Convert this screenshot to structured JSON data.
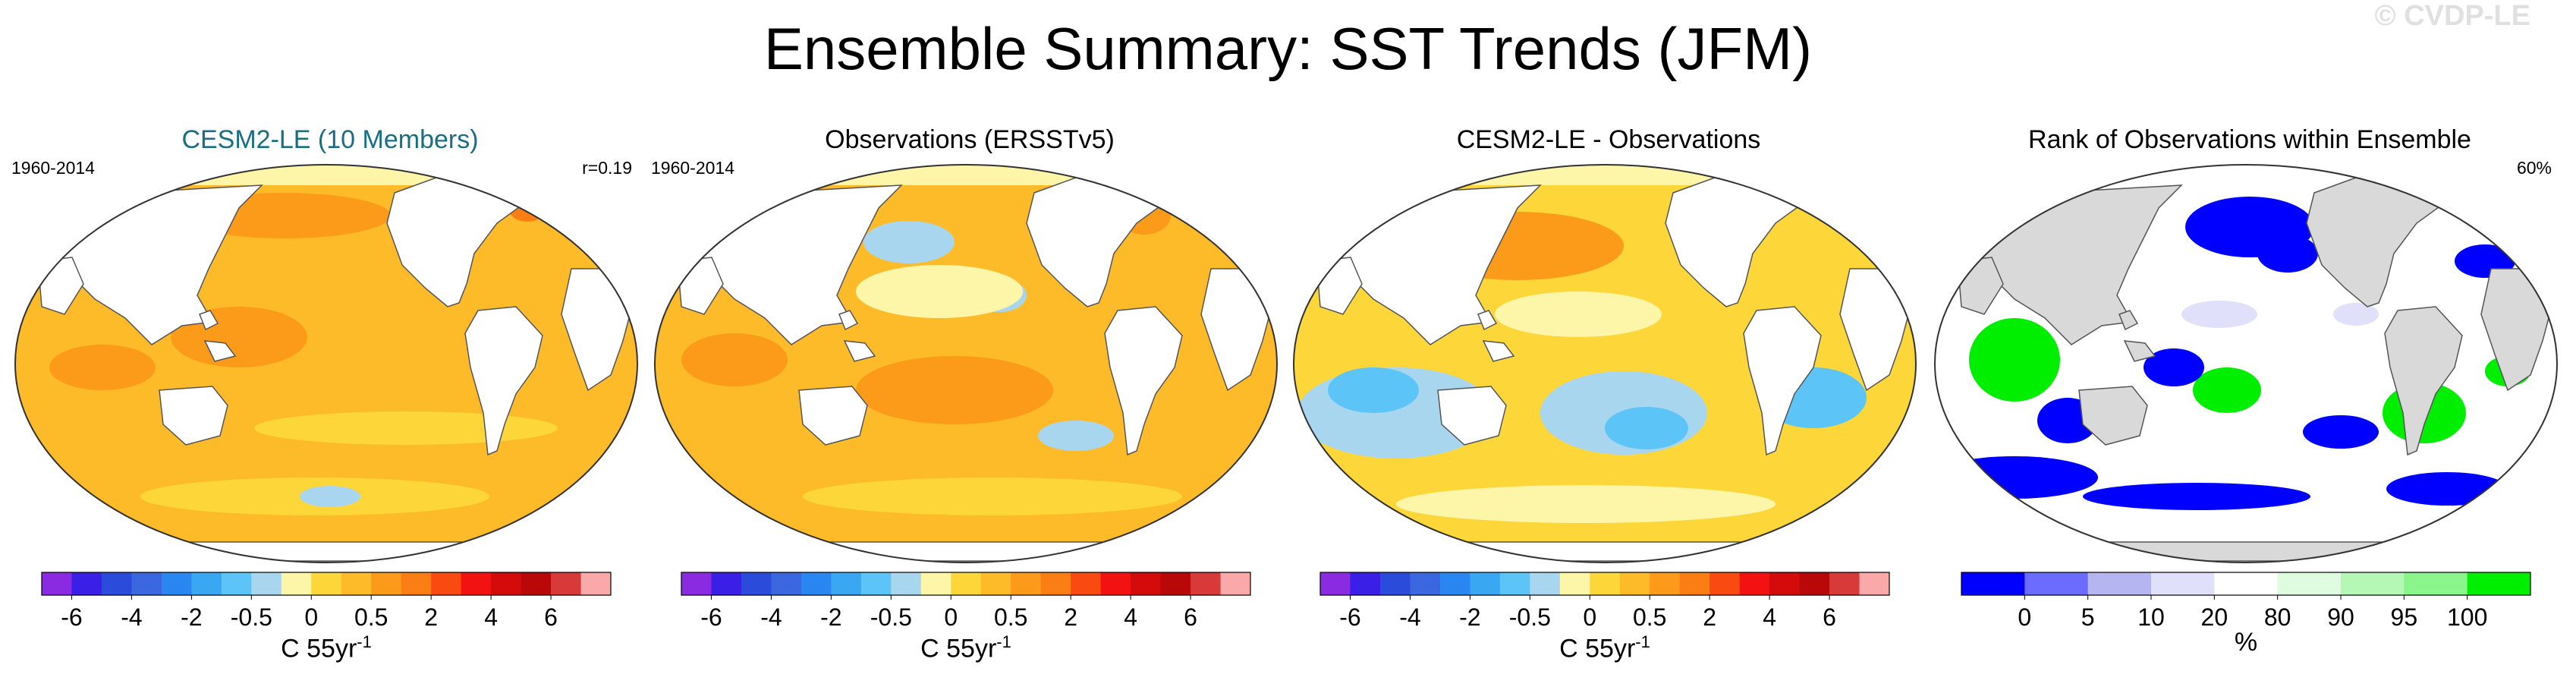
{
  "title": "Ensemble Summary: SST Trends (JFM)",
  "watermark": "© CVDP-LE",
  "chart_data": [
    {
      "type": "heatmap",
      "title": "CESM2-LE (10 Members)",
      "title_color": "#1a6e84",
      "left_label": "1960-2014",
      "right_label": "r=0.19",
      "colorbar": {
        "colors": [
          "#8a2be2",
          "#3a1fe6",
          "#2b4bdb",
          "#3a66e0",
          "#2a86f0",
          "#3aa7f2",
          "#5cc4f6",
          "#a9d6ef",
          "#fdf6a9",
          "#fdd73a",
          "#fdbb2a",
          "#fc9a1a",
          "#fb7e15",
          "#f94a12",
          "#f31212",
          "#d30b0b",
          "#b80808",
          "#d83a3a",
          "#f9a9a9"
        ],
        "ticks": [
          "-6",
          "-4",
          "-2",
          "-0.5",
          "0",
          "0.5",
          "2",
          "4",
          "6"
        ],
        "units": "C 55yr",
        "units_sup": "-1"
      }
    },
    {
      "type": "heatmap",
      "title": "Observations (ERSSTv5)",
      "title_color": "#000000",
      "left_label": "1960-2014",
      "right_label": "",
      "colorbar": {
        "colors": [
          "#8a2be2",
          "#3a1fe6",
          "#2b4bdb",
          "#3a66e0",
          "#2a86f0",
          "#3aa7f2",
          "#5cc4f6",
          "#a9d6ef",
          "#fdf6a9",
          "#fdd73a",
          "#fdbb2a",
          "#fc9a1a",
          "#fb7e15",
          "#f94a12",
          "#f31212",
          "#d30b0b",
          "#b80808",
          "#d83a3a",
          "#f9a9a9"
        ],
        "ticks": [
          "-6",
          "-4",
          "-2",
          "-0.5",
          "0",
          "0.5",
          "2",
          "4",
          "6"
        ],
        "units": "C 55yr",
        "units_sup": "-1"
      }
    },
    {
      "type": "heatmap",
      "title": "CESM2-LE - Observations",
      "title_color": "#000000",
      "left_label": "",
      "right_label": "",
      "colorbar": {
        "colors": [
          "#8a2be2",
          "#3a1fe6",
          "#2b4bdb",
          "#3a66e0",
          "#2a86f0",
          "#3aa7f2",
          "#5cc4f6",
          "#a9d6ef",
          "#fdf6a9",
          "#fdd73a",
          "#fdbb2a",
          "#fc9a1a",
          "#fb7e15",
          "#f94a12",
          "#f31212",
          "#d30b0b",
          "#b80808",
          "#d83a3a",
          "#f9a9a9"
        ],
        "ticks": [
          "-6",
          "-4",
          "-2",
          "-0.5",
          "0",
          "0.5",
          "2",
          "4",
          "6"
        ],
        "units": "C 55yr",
        "units_sup": "-1"
      }
    },
    {
      "type": "heatmap",
      "title": "Rank of Observations within Ensemble",
      "title_color": "#000000",
      "left_label": "",
      "right_label": "60%",
      "colorbar": {
        "colors": [
          "#0000ff",
          "#6b6bff",
          "#b5b5f2",
          "#e0e0fa",
          "#ffffff",
          "#e0fce0",
          "#b5f7b5",
          "#8af58a",
          "#00ee00"
        ],
        "ticks": [
          "0",
          "5",
          "10",
          "20",
          "80",
          "90",
          "95",
          "100"
        ],
        "units": "%",
        "units_sup": ""
      }
    }
  ]
}
